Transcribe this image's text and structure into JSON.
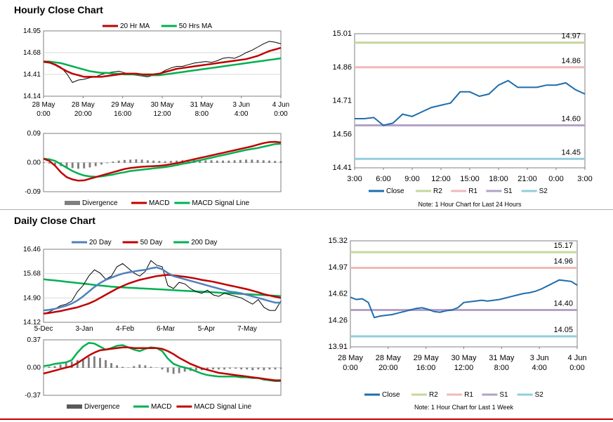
{
  "sections": {
    "hourly_title": "Hourly Close Chart",
    "daily_title": "Daily Close Chart"
  },
  "colors": {
    "close": "#1f6cab",
    "r2": "#c4d79b",
    "r1": "#f2b8b8",
    "s1": "#b3a2c7",
    "s2": "#93cddd",
    "ma_red": "#c00000",
    "ma_green": "#00b050",
    "ma_blue": "#4f81bd",
    "divergence": "#7f7f7f",
    "grid": "#d9d9d9",
    "bottom_line": "#c00000"
  },
  "chart_data": [
    {
      "id": "hourly_price",
      "type": "line",
      "title": "Hourly Close Chart",
      "x_labels": [
        "28 May\n0:00",
        "28 May\n20:00",
        "29 May\n16:00",
        "30 May\n12:00",
        "31 May\n8:00",
        "3 Jun\n4:00",
        "4 Jun\n0:00"
      ],
      "ylim": [
        14.14,
        14.95
      ],
      "y_ticks": [
        "14.95",
        "14.68",
        "14.41",
        "14.14"
      ],
      "legend": [
        "20 Hr MA",
        "50 Hrs MA"
      ],
      "series": [
        {
          "name": "Price",
          "values": [
            14.56,
            14.55,
            14.54,
            14.5,
            14.42,
            14.31,
            14.34,
            14.35,
            14.37,
            14.38,
            14.41,
            14.43,
            14.44,
            14.45,
            14.43,
            14.41,
            14.4,
            14.39,
            14.38,
            14.4,
            14.42,
            14.46,
            14.49,
            14.51,
            14.51,
            14.53,
            14.55,
            14.56,
            14.57,
            14.56,
            14.58,
            14.61,
            14.62,
            14.61,
            14.64,
            14.68,
            14.71,
            14.75,
            14.79,
            14.82,
            14.81,
            14.79
          ]
        },
        {
          "name": "20 Hr MA",
          "values": [
            14.57,
            14.56,
            14.53,
            14.49,
            14.45,
            14.42,
            14.4,
            14.38,
            14.38,
            14.38,
            14.38,
            14.39,
            14.4,
            14.41,
            14.42,
            14.42,
            14.42,
            14.41,
            14.41,
            14.41,
            14.42,
            14.44,
            14.46,
            14.48,
            14.49,
            14.5,
            14.51,
            14.52,
            14.53,
            14.54,
            14.55,
            14.56,
            14.57,
            14.58,
            14.59,
            14.6,
            14.62,
            14.64,
            14.67,
            14.7,
            14.72,
            14.74
          ]
        },
        {
          "name": "50 Hrs MA",
          "values": [
            14.57,
            14.57,
            14.56,
            14.55,
            14.53,
            14.51,
            14.49,
            14.47,
            14.45,
            14.44,
            14.43,
            14.43,
            14.42,
            14.42,
            14.41,
            14.41,
            14.41,
            14.4,
            14.4,
            14.4,
            14.4,
            14.41,
            14.42,
            14.43,
            14.44,
            14.45,
            14.46,
            14.47,
            14.48,
            14.49,
            14.5,
            14.51,
            14.52,
            14.53,
            14.54,
            14.55,
            14.56,
            14.57,
            14.58,
            14.59,
            14.6,
            14.61
          ]
        }
      ]
    },
    {
      "id": "hourly_macd",
      "type": "line",
      "ylim": [
        -0.09,
        0.09
      ],
      "y_ticks": [
        "0.09",
        "0.00",
        "-0.09"
      ],
      "legend": [
        "Divergence",
        "MACD",
        "MACD Signal Line"
      ],
      "series": [
        {
          "name": "Divergence",
          "values": [
            0.001,
            -0.002,
            -0.006,
            -0.01,
            -0.013,
            -0.016,
            -0.018,
            -0.017,
            -0.014,
            -0.01,
            -0.005,
            -0.001,
            0.003,
            0.006,
            0.008,
            0.009,
            0.01,
            0.009,
            0.007,
            0.006,
            0.005,
            0.004,
            0.005,
            0.006,
            0.007,
            0.008,
            0.009,
            0.008,
            0.007,
            0.007,
            0.006,
            0.006,
            0.006,
            0.007,
            0.008,
            0.009,
            0.009,
            0.008,
            0.007,
            0.006,
            0.005,
            0.004
          ]
        },
        {
          "name": "MACD",
          "values": [
            0.012,
            0.005,
            -0.01,
            -0.03,
            -0.045,
            -0.052,
            -0.056,
            -0.055,
            -0.05,
            -0.045,
            -0.04,
            -0.035,
            -0.03,
            -0.025,
            -0.02,
            -0.017,
            -0.015,
            -0.013,
            -0.012,
            -0.011,
            -0.01,
            -0.008,
            -0.005,
            -0.002,
            0.002,
            0.006,
            0.01,
            0.014,
            0.018,
            0.022,
            0.026,
            0.03,
            0.034,
            0.038,
            0.042,
            0.046,
            0.05,
            0.055,
            0.06,
            0.063,
            0.064,
            0.062
          ]
        },
        {
          "name": "MACD Signal Line",
          "values": [
            0.012,
            0.01,
            0.005,
            -0.005,
            -0.016,
            -0.026,
            -0.034,
            -0.04,
            -0.043,
            -0.044,
            -0.043,
            -0.04,
            -0.037,
            -0.033,
            -0.03,
            -0.026,
            -0.024,
            -0.022,
            -0.02,
            -0.018,
            -0.016,
            -0.014,
            -0.011,
            -0.008,
            -0.004,
            -0.001,
            0.003,
            0.007,
            0.011,
            0.015,
            0.019,
            0.023,
            0.027,
            0.031,
            0.035,
            0.039,
            0.042,
            0.045,
            0.049,
            0.053,
            0.057,
            0.058
          ]
        }
      ]
    },
    {
      "id": "daily_price",
      "type": "line",
      "title": "Daily Close Chart",
      "x_labels": [
        "5-Dec",
        "3-Jan",
        "4-Feb",
        "6-Mar",
        "5-Apr",
        "7-May"
      ],
      "ylim": [
        14.12,
        16.46
      ],
      "y_ticks": [
        "16.46",
        "15.68",
        "14.90",
        "14.12"
      ],
      "legend": [
        "20 Day",
        "50 Day",
        "200 Day"
      ],
      "series": [
        {
          "name": "Price",
          "values": [
            14.4,
            14.45,
            14.55,
            14.65,
            14.7,
            14.8,
            15.1,
            15.3,
            15.6,
            15.8,
            15.7,
            15.5,
            15.6,
            15.9,
            16.0,
            15.85,
            15.7,
            15.6,
            15.75,
            16.1,
            15.95,
            15.9,
            15.3,
            15.2,
            15.4,
            15.35,
            15.2,
            15.1,
            15.05,
            15.15,
            15.0,
            14.95,
            15.05,
            15.0,
            14.95,
            14.9,
            14.8,
            14.7,
            14.85,
            14.6,
            14.5,
            14.5,
            14.8
          ]
        },
        {
          "name": "20 Day",
          "values": [
            14.5,
            14.52,
            14.55,
            14.6,
            14.65,
            14.72,
            14.82,
            14.95,
            15.1,
            15.25,
            15.38,
            15.48,
            15.55,
            15.62,
            15.68,
            15.72,
            15.75,
            15.78,
            15.8,
            15.85,
            15.88,
            15.82,
            15.7,
            15.6,
            15.55,
            15.5,
            15.45,
            15.4,
            15.35,
            15.3,
            15.25,
            15.2,
            15.15,
            15.1,
            15.08,
            15.05,
            15.0,
            14.95,
            14.9,
            14.85,
            14.8,
            14.75,
            14.75
          ]
        },
        {
          "name": "50 Day",
          "values": [
            14.4,
            14.42,
            14.45,
            14.48,
            14.52,
            14.56,
            14.6,
            14.66,
            14.72,
            14.8,
            14.9,
            15.0,
            15.1,
            15.2,
            15.28,
            15.36,
            15.42,
            15.48,
            15.52,
            15.56,
            15.6,
            15.62,
            15.64,
            15.62,
            15.6,
            15.58,
            15.55,
            15.52,
            15.48,
            15.45,
            15.42,
            15.38,
            15.34,
            15.3,
            15.26,
            15.22,
            15.18,
            15.13,
            15.08,
            15.02,
            14.98,
            14.94,
            14.9
          ]
        },
        {
          "name": "200 Day",
          "values": [
            15.5,
            15.48,
            15.46,
            15.44,
            15.42,
            15.4,
            15.38,
            15.36,
            15.34,
            15.32,
            15.3,
            15.28,
            15.26,
            15.25,
            15.24,
            15.23,
            15.22,
            15.21,
            15.2,
            15.19,
            15.18,
            15.17,
            15.16,
            15.15,
            15.14,
            15.13,
            15.12,
            15.11,
            15.1,
            15.09,
            15.08,
            15.07,
            15.06,
            15.05,
            15.04,
            15.03,
            15.02,
            15.01,
            15.0,
            14.99,
            14.98,
            14.97,
            14.96
          ]
        }
      ]
    },
    {
      "id": "daily_macd",
      "type": "line",
      "ylim": [
        -0.37,
        0.37
      ],
      "y_ticks": [
        "0.37",
        "0.00",
        "-0.37"
      ],
      "legend": [
        "Divergence",
        "MACD",
        "MACD Signal Line"
      ],
      "series": [
        {
          "name": "Divergence",
          "values": [
            0.0,
            0.01,
            0.02,
            0.04,
            0.06,
            0.08,
            0.1,
            0.12,
            0.14,
            0.15,
            0.13,
            0.1,
            0.06,
            0.03,
            0.01,
            0.0,
            0.02,
            0.04,
            0.03,
            0.01,
            0.0,
            -0.02,
            -0.06,
            -0.08,
            -0.07,
            -0.05,
            -0.04,
            -0.03,
            -0.03,
            -0.02,
            -0.02,
            -0.02,
            -0.02,
            -0.01,
            -0.01,
            -0.02,
            -0.02,
            -0.03,
            -0.02,
            -0.03,
            -0.02,
            -0.02,
            -0.01
          ]
        },
        {
          "name": "MACD",
          "values": [
            0.02,
            0.03,
            0.05,
            0.06,
            0.07,
            0.1,
            0.2,
            0.28,
            0.33,
            0.32,
            0.28,
            0.24,
            0.26,
            0.29,
            0.3,
            0.27,
            0.24,
            0.22,
            0.25,
            0.27,
            0.26,
            0.22,
            0.12,
            0.05,
            0.02,
            0.0,
            -0.02,
            -0.05,
            -0.08,
            -0.1,
            -0.11,
            -0.12,
            -0.12,
            -0.12,
            -0.12,
            -0.13,
            -0.13,
            -0.14,
            -0.14,
            -0.16,
            -0.17,
            -0.18,
            -0.18
          ]
        },
        {
          "name": "MACD Signal Line",
          "values": [
            -0.08,
            -0.06,
            -0.04,
            -0.02,
            0.0,
            0.02,
            0.06,
            0.11,
            0.16,
            0.2,
            0.23,
            0.24,
            0.25,
            0.26,
            0.27,
            0.27,
            0.26,
            0.26,
            0.26,
            0.26,
            0.26,
            0.25,
            0.22,
            0.18,
            0.13,
            0.09,
            0.05,
            0.02,
            -0.01,
            -0.03,
            -0.05,
            -0.07,
            -0.08,
            -0.09,
            -0.1,
            -0.11,
            -0.12,
            -0.13,
            -0.14,
            -0.15,
            -0.16,
            -0.17,
            -0.17
          ]
        }
      ]
    },
    {
      "id": "hourly_pivot",
      "type": "line",
      "x_labels": [
        "3:00",
        "6:00",
        "9:00",
        "12:00",
        "15:00",
        "18:00",
        "21:00",
        "0:00",
        "3:00"
      ],
      "ylim": [
        14.41,
        15.01
      ],
      "y_ticks": [
        "15.01",
        "14.86",
        "14.71",
        "14.56",
        "14.41"
      ],
      "levels": [
        {
          "name": "R2",
          "value": 14.97,
          "label": "14.97"
        },
        {
          "name": "R1",
          "value": 14.86,
          "label": "14.86"
        },
        {
          "name": "S1",
          "value": 14.6,
          "label": "14.60"
        },
        {
          "name": "S2",
          "value": 14.45,
          "label": "14.45"
        }
      ],
      "series": [
        {
          "name": "Close",
          "values": [
            14.63,
            14.63,
            14.635,
            14.6,
            14.61,
            14.65,
            14.64,
            14.66,
            14.68,
            14.69,
            14.7,
            14.75,
            14.75,
            14.73,
            14.74,
            14.78,
            14.8,
            14.77,
            14.77,
            14.77,
            14.78,
            14.78,
            14.79,
            14.76,
            14.74
          ]
        }
      ],
      "legend": [
        "Close",
        "R2",
        "R1",
        "S1",
        "S2"
      ],
      "note": "Note: 1 Hour Chart for Last 24 Hours"
    },
    {
      "id": "weekly_pivot",
      "type": "line",
      "x_labels": [
        "28 May\n0:00",
        "28 May\n20:00",
        "29 May\n16:00",
        "30 May\n12:00",
        "31 May\n8:00",
        "3 Jun\n4:00",
        "4 Jun\n0:00"
      ],
      "ylim": [
        13.91,
        15.32
      ],
      "y_ticks": [
        "15.32",
        "14.97",
        "14.62",
        "14.26",
        "13.91"
      ],
      "levels": [
        {
          "name": "R2",
          "value": 15.17,
          "label": "15.17"
        },
        {
          "name": "R1",
          "value": 14.96,
          "label": "14.96"
        },
        {
          "name": "S1",
          "value": 14.4,
          "label": "14.40"
        },
        {
          "name": "S2",
          "value": 14.05,
          "label": "14.05"
        }
      ],
      "series": [
        {
          "name": "Close",
          "values": [
            14.57,
            14.54,
            14.55,
            14.5,
            14.3,
            14.32,
            14.33,
            14.34,
            14.36,
            14.38,
            14.4,
            14.42,
            14.43,
            14.41,
            14.38,
            14.37,
            14.39,
            14.4,
            14.43,
            14.5,
            14.51,
            14.52,
            14.53,
            14.52,
            14.53,
            14.54,
            14.56,
            14.58,
            14.6,
            14.62,
            14.63,
            14.65,
            14.68,
            14.72,
            14.76,
            14.8,
            14.79,
            14.78,
            14.73
          ]
        }
      ],
      "legend": [
        "Close",
        "R2",
        "R1",
        "S1",
        "S2"
      ],
      "note": "Note: 1 Hour Chart for Last 1 Week"
    }
  ]
}
